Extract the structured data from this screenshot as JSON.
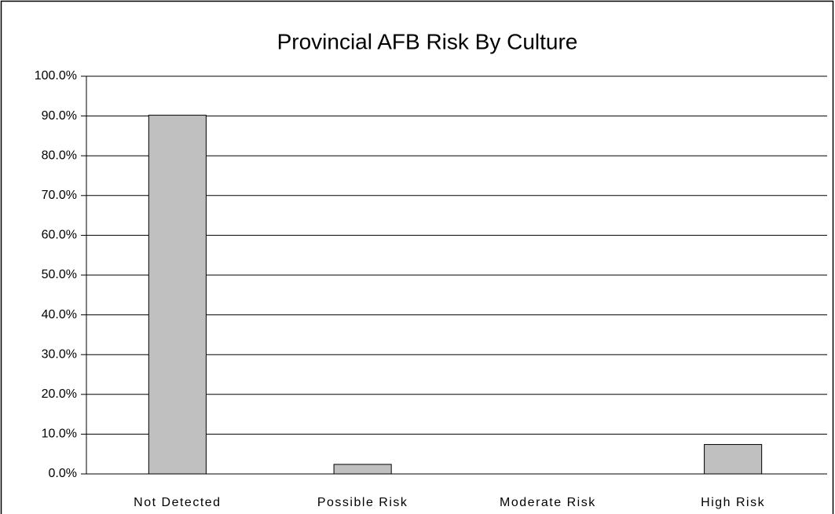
{
  "chart_data": {
    "type": "bar",
    "title": "Provincial AFB Risk By Culture",
    "categories": [
      "Not Detected",
      "Possible Risk",
      "Moderate Risk",
      "High Risk"
    ],
    "values": [
      90.2,
      2.4,
      0,
      7.4
    ],
    "color": "#c0c0c0",
    "ylim": [
      0,
      100
    ],
    "yticks": [
      {
        "value": 0,
        "label": "0.0%"
      },
      {
        "value": 10,
        "label": "10.0%"
      },
      {
        "value": 20,
        "label": "20.0%"
      },
      {
        "value": 30,
        "label": "30.0%"
      },
      {
        "value": 40,
        "label": "40.0%"
      },
      {
        "value": 50,
        "label": "50.0%"
      },
      {
        "value": 60,
        "label": "60.0%"
      },
      {
        "value": 70,
        "label": "70.0%"
      },
      {
        "value": 80,
        "label": "80.0%"
      },
      {
        "value": 90,
        "label": "90.0%"
      },
      {
        "value": 100,
        "label": "100.0%"
      }
    ],
    "grid": true
  }
}
